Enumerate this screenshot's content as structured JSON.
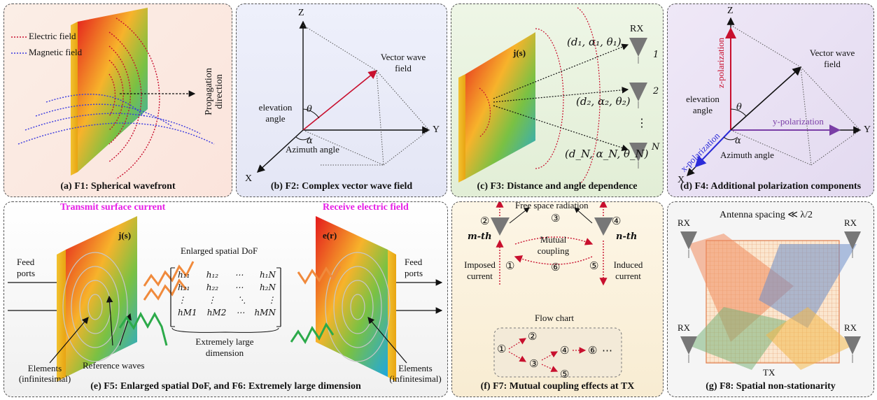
{
  "colors": {
    "electric": "#c8102e",
    "magnetic": "#3a3adf",
    "accent_magenta": "#e61ee6",
    "x_pol": "#2b2bd9",
    "y_pol": "#7a3ea6",
    "z_pol": "#c8102e"
  },
  "panels": {
    "f1": {
      "caption": "(a) F1: Spherical wavefront",
      "legend_electric": "Electric field",
      "legend_magnetic": "Magnetic field",
      "propagation": "Propagation direction"
    },
    "f2": {
      "caption": "(b) F2: Complex vector wave field",
      "axis_z": "Z",
      "axis_y": "Y",
      "axis_x": "X",
      "vector_label": "Vector wave field",
      "elevation": "elevation angle",
      "theta": "θ",
      "alpha": "α",
      "azimuth": "Azimuth angle"
    },
    "f3": {
      "caption": "(c) F3: Distance and angle dependence",
      "source": "j(s)",
      "rx": "RX",
      "labels": [
        "(d₁, α₁, θ₁)",
        "(d₂, α₂, θ₂)",
        "(d_N, α_N, θ_N)"
      ],
      "indices": [
        "1",
        "2",
        "N"
      ],
      "dots": "⋮"
    },
    "f4": {
      "caption": "(d) F4: Additional polarization components",
      "axis_z": "Z",
      "axis_y": "Y",
      "axis_x": "X",
      "z_pol": "z-polarization",
      "y_pol": "y-polarization",
      "x_pol": "x-polarization",
      "vector_label": "Vector wave field",
      "elevation": "elevation angle",
      "theta": "θ",
      "alpha": "α",
      "azimuth": "Azimuth angle"
    },
    "f5": {
      "caption": "(e) F5: Enlarged spatial DoF, and F6: Extremely large dimension",
      "transmit": "Transmit surface current",
      "receive": "Receive electric field",
      "source": "j(s)",
      "field": "e(r)",
      "feed_left": "Feed ports",
      "feed_right": "Feed ports",
      "dof": "Enlarged spatial DoF",
      "matrix": [
        [
          "h₁₁",
          "h₁₂",
          "⋯",
          "h₁N"
        ],
        [
          "h₂₁",
          "h₂₂",
          "⋯",
          "h₂N"
        ],
        [
          "⋮",
          "⋮",
          "⋱",
          "⋮"
        ],
        [
          "hM1",
          "hM2",
          "⋯",
          "hMN"
        ]
      ],
      "large": "Extremely large dimension",
      "elements_left": "Elements (infinitesimal)",
      "elements_right": "Elements (infinitesimal)",
      "reference": "Reference waves"
    },
    "f7": {
      "caption": "(f) F7: Mutual coupling effects at TX",
      "free_space": "Free space radiation",
      "m_th": "m-th",
      "n_th": "n-th",
      "mutual": "Mutual coupling",
      "imposed": "Imposed current",
      "induced": "Induced current",
      "flow": "Flow chart",
      "nums": [
        "①",
        "②",
        "③",
        "④",
        "⑤",
        "⑥"
      ],
      "ellipsis": "⋯"
    },
    "f8": {
      "caption": "(g) F8: Spatial non-stationarity",
      "spacing": "Antenna spacing ≪ λ/2",
      "rx": "RX",
      "tx": "TX"
    }
  }
}
